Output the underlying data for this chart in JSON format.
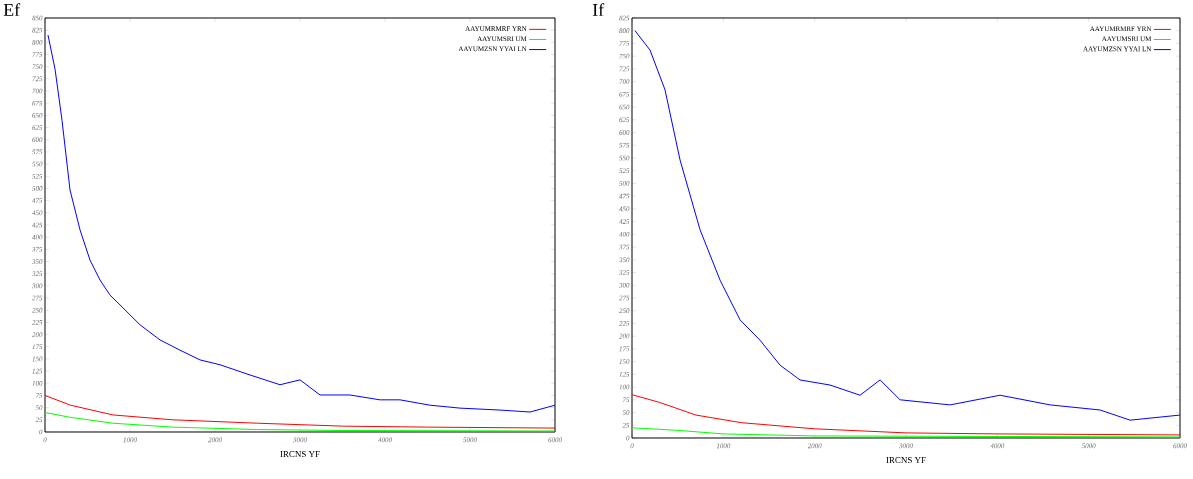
{
  "chart_data": [
    {
      "type": "line",
      "title": "Ef",
      "xlabel": "IRCNS YF",
      "xlim": [
        0,
        6000
      ],
      "xticks": [
        0,
        1000,
        2000,
        3000,
        4000,
        5000,
        6000
      ],
      "ylim": [
        0,
        850
      ],
      "yticks": [
        0,
        25,
        50,
        75,
        100,
        125,
        150,
        175,
        200,
        225,
        250,
        275,
        300,
        325,
        350,
        375,
        400,
        425,
        450,
        475,
        500,
        525,
        550,
        575,
        600,
        625,
        650,
        675,
        700,
        725,
        750,
        775,
        800,
        825,
        850
      ],
      "legend": "top right",
      "grid": false,
      "series": [
        {
          "name": "AAYUMRMRF YRN",
          "color": "#ff0000",
          "x": [
            0,
            300,
            800,
            1500,
            2500,
            3500,
            4500,
            6000
          ],
          "values": [
            75,
            55,
            35,
            25,
            18,
            12,
            10,
            8
          ]
        },
        {
          "name": "AAYUMSRI UM",
          "color": "#00ff00",
          "x": [
            0,
            300,
            800,
            1500,
            2500,
            3500,
            6000
          ],
          "values": [
            40,
            30,
            18,
            10,
            5,
            3,
            2
          ]
        },
        {
          "name": "AAYUMZSN YYAI LN",
          "color": "#0000ff",
          "x": [
            35,
            118,
            200,
            294,
            412,
            529,
            647,
            765,
            882,
            1118,
            1353,
            1588,
            1824,
            2059,
            2412,
            2765,
            3000,
            3235,
            3588,
            3941,
            4176,
            4529,
            4882,
            5353,
            5706,
            6000
          ],
          "values": [
            815,
            745,
            640,
            497,
            415,
            353,
            312,
            281,
            261,
            220,
            189,
            168,
            148,
            138,
            117,
            97,
            107,
            76,
            76,
            66,
            66,
            55,
            49,
            45,
            41,
            55
          ]
        }
      ]
    },
    {
      "type": "line",
      "title": "If",
      "xlabel": "IRCNS YF",
      "xlim": [
        0,
        6000
      ],
      "xticks": [
        0,
        1000,
        2000,
        3000,
        4000,
        5000,
        6000
      ],
      "ylim": [
        0,
        825
      ],
      "yticks": [
        0,
        25,
        50,
        75,
        100,
        125,
        150,
        175,
        200,
        225,
        250,
        275,
        300,
        325,
        350,
        375,
        400,
        425,
        450,
        475,
        500,
        525,
        550,
        575,
        600,
        625,
        650,
        675,
        700,
        725,
        750,
        775,
        800,
        825
      ],
      "legend": "top right",
      "grid": false,
      "series": [
        {
          "name": "AAYUMRMRF YRN",
          "color": "#ff0000",
          "x": [
            0,
            300,
            700,
            1200,
            2000,
            3000,
            4000,
            6000
          ],
          "values": [
            85,
            70,
            45,
            30,
            18,
            10,
            8,
            6
          ]
        },
        {
          "name": "AAYUMSRI UM",
          "color": "#00ff00",
          "x": [
            0,
            500,
            1000,
            2000,
            6000
          ],
          "values": [
            20,
            15,
            8,
            4,
            2
          ]
        },
        {
          "name": "AAYUMZSN YYAI LN",
          "color": "#0000ff",
          "x": [
            33,
            197,
            361,
            526,
            745,
            964,
            1183,
            1402,
            1621,
            1840,
            2168,
            2497,
            2716,
            2935,
            3483,
            4030,
            4578,
            5125,
            5453,
            6000
          ],
          "values": [
            800,
            762,
            684,
            546,
            409,
            310,
            232,
            192,
            143,
            114,
            104,
            84,
            114,
            75,
            65,
            84,
            65,
            55,
            35,
            45
          ]
        }
      ]
    }
  ]
}
